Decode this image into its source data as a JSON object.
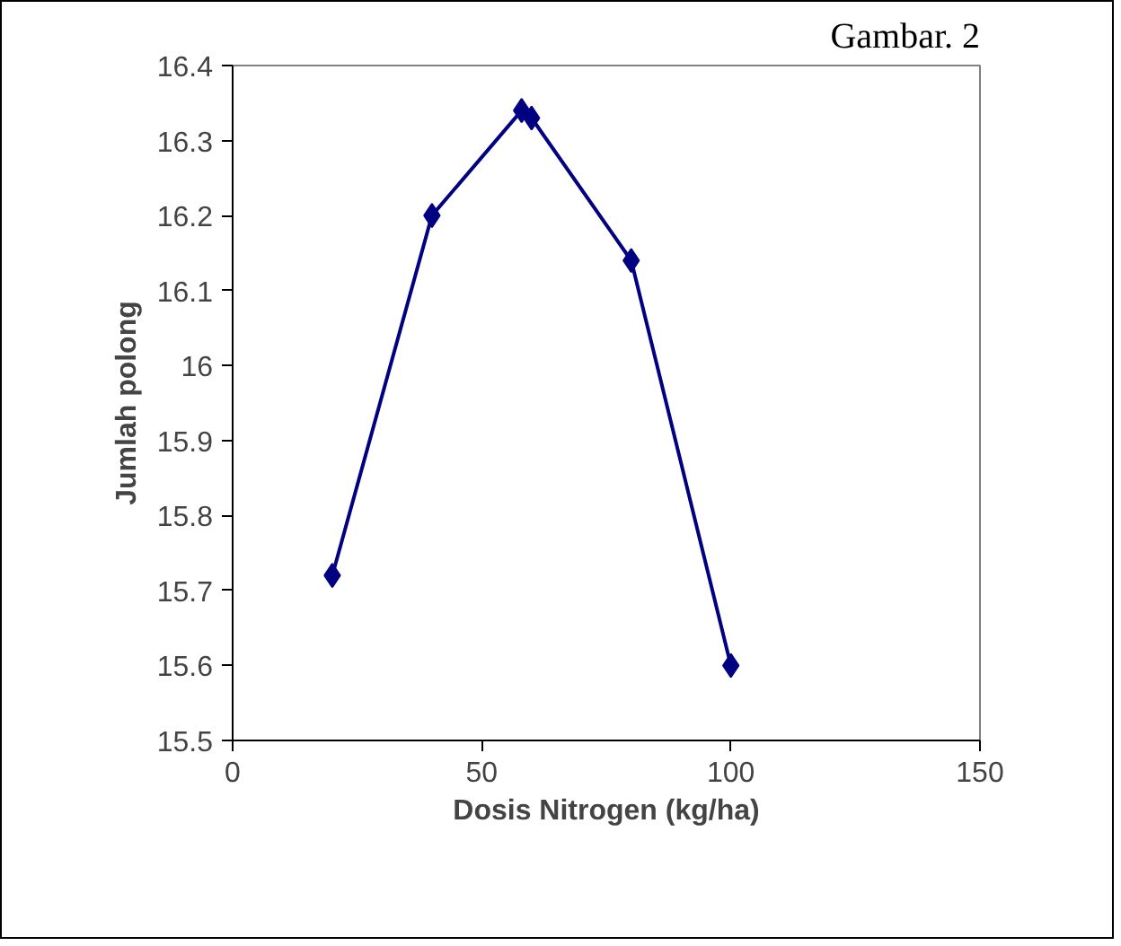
{
  "chart_data": {
    "type": "line",
    "annotations": [
      "Gambar. 2"
    ],
    "xlabel": "Dosis Nitrogen (kg/ha)",
    "ylabel": "Jumlah polong",
    "x": [
      20,
      40,
      58,
      60,
      80,
      100
    ],
    "series": [
      {
        "color": "#000080",
        "values": [
          15.72,
          16.2,
          16.34,
          16.33,
          16.14,
          15.6
        ]
      }
    ],
    "xlim": [
      0,
      150
    ],
    "xticks": [
      0,
      50,
      100,
      150
    ],
    "ylim": [
      15.5,
      16.4
    ],
    "yticks": [
      15.5,
      15.6,
      15.7,
      15.8,
      15.9,
      16,
      16.1,
      16.2,
      16.3,
      16.4
    ],
    "marker": "diamond",
    "grid": false
  }
}
